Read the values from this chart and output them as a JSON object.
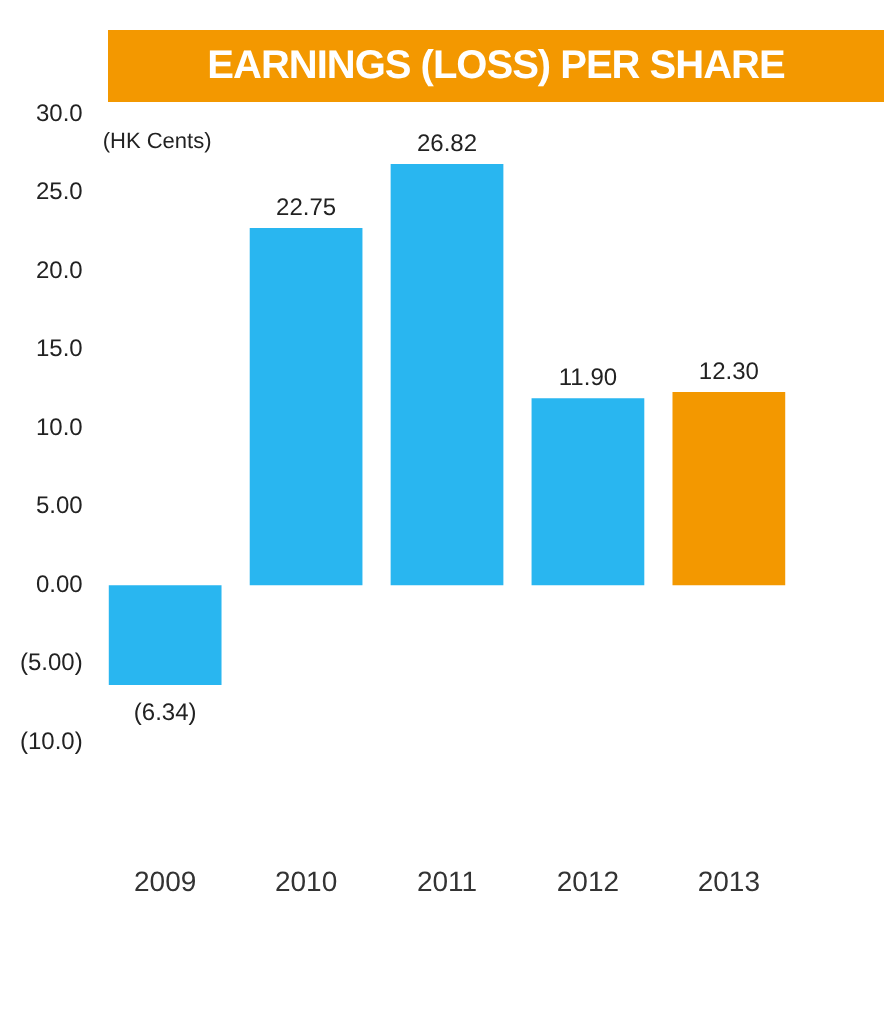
{
  "chart_data": {
    "type": "bar",
    "title": "EARNINGS (LOSS) PER SHARE",
    "ylabel": "(HK Cents)",
    "categories": [
      "2009",
      "2010",
      "2011",
      "2012",
      "2013"
    ],
    "values": [
      -6.34,
      22.75,
      26.82,
      11.9,
      12.3
    ],
    "colors": [
      "#29b6f0",
      "#29b6f0",
      "#29b6f0",
      "#29b6f0",
      "#f39800"
    ],
    "value_labels": [
      "(6.34)",
      "22.75",
      "26.82",
      "11.90",
      "12.30"
    ],
    "ylim": [
      -10,
      30
    ],
    "yticks": [
      {
        "value": -10,
        "label": "(10.0)"
      },
      {
        "value": -5,
        "label": "(5.00)"
      },
      {
        "value": 0,
        "label": "0.00"
      },
      {
        "value": 5,
        "label": "5.00"
      },
      {
        "value": 10,
        "label": "10.0"
      },
      {
        "value": 15,
        "label": "15.0"
      },
      {
        "value": 20,
        "label": "20.0"
      },
      {
        "value": 25,
        "label": "25.0"
      },
      {
        "value": 30,
        "label": "30.0"
      }
    ],
    "grid": false,
    "legend": false
  }
}
